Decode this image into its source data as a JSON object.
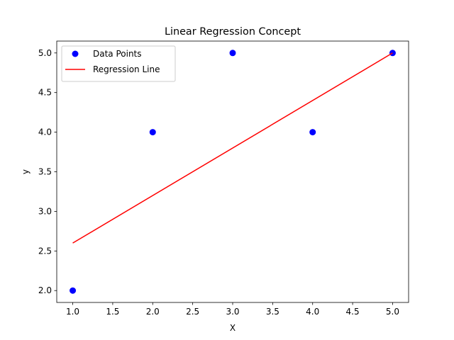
{
  "chart_data": {
    "type": "scatter",
    "title": "Linear Regression Concept",
    "xlabel": "X",
    "ylabel": "y",
    "xlim": [
      0.8,
      5.2
    ],
    "ylim": [
      1.85,
      5.15
    ],
    "xticks": [
      1.0,
      1.5,
      2.0,
      2.5,
      3.0,
      3.5,
      4.0,
      4.5,
      5.0
    ],
    "yticks": [
      2.0,
      2.5,
      3.0,
      3.5,
      4.0,
      4.5,
      5.0
    ],
    "grid": false,
    "legend_position": "top-left",
    "series": [
      {
        "name": "Data Points",
        "kind": "scatter",
        "color": "#0000ff",
        "x": [
          1,
          2,
          3,
          4,
          5
        ],
        "y": [
          2,
          4,
          5,
          4,
          5
        ]
      },
      {
        "name": "Regression Line",
        "kind": "line",
        "color": "#ff0000",
        "x": [
          1,
          5
        ],
        "y": [
          2.6,
          5.0
        ]
      }
    ]
  }
}
